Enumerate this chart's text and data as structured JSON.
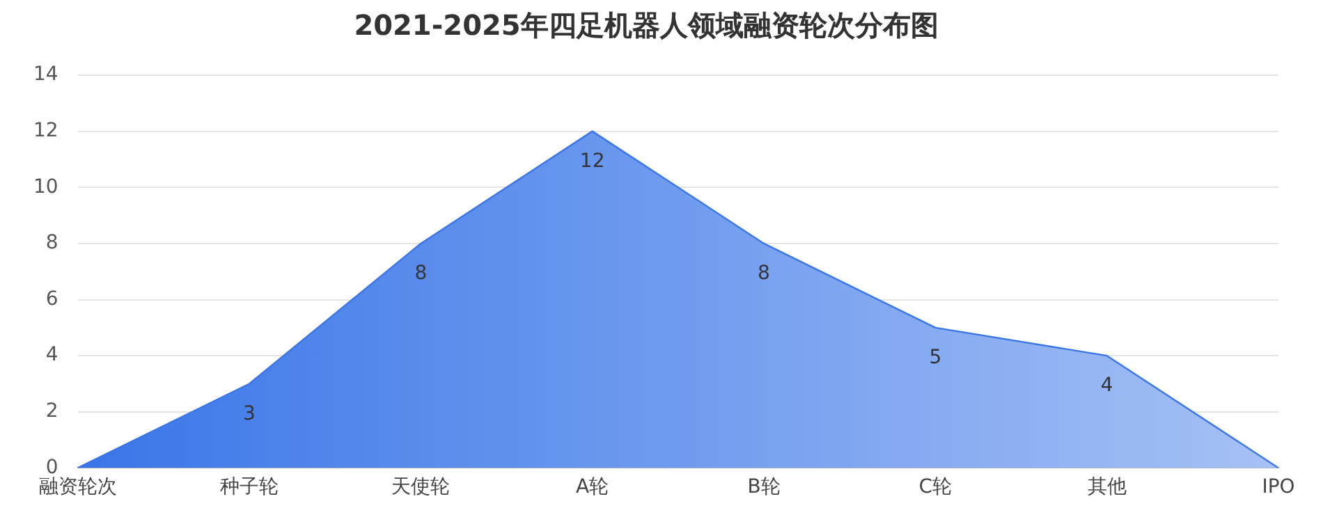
{
  "chart_data": {
    "type": "area",
    "title": "2021-2025年四足机器人领域融资轮次分布图",
    "categories": [
      "融资轮次",
      "种子轮",
      "天使轮",
      "A轮",
      "B轮",
      "C轮",
      "其他",
      "IPO"
    ],
    "series": [
      {
        "color": "#3a76e8",
        "values": [
          0,
          3,
          8,
          12,
          8,
          5,
          4,
          0
        ],
        "value_labels": [
          null,
          "3",
          "8",
          "12",
          "8",
          "5",
          "4",
          null
        ]
      }
    ],
    "ylim": [
      0,
      14
    ],
    "yticks": [
      0,
      2,
      4,
      6,
      8,
      10,
      12,
      14
    ],
    "grid": "y",
    "legend": false
  }
}
